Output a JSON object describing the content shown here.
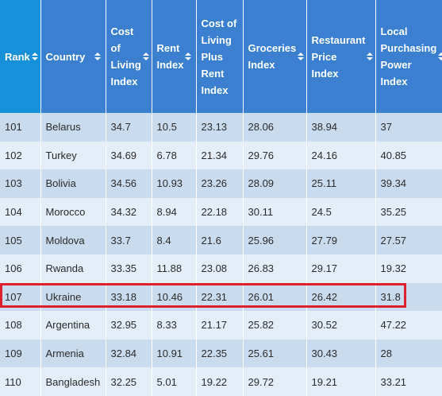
{
  "columns": [
    {
      "label": "Rank"
    },
    {
      "label": "Country"
    },
    {
      "label": "Cost of Living Index"
    },
    {
      "label": "Rent Index"
    },
    {
      "label": "Cost of Living Plus Rent Index"
    },
    {
      "label": "Groceries Index"
    },
    {
      "label": "Restaurant Price Index"
    },
    {
      "label": "Local Purchasing Power Index"
    }
  ],
  "rows": [
    [
      "101",
      "Belarus",
      "34.7",
      "10.5",
      "23.13",
      "28.06",
      "38.94",
      "37"
    ],
    [
      "102",
      "Turkey",
      "34.69",
      "6.78",
      "21.34",
      "29.76",
      "24.16",
      "40.85"
    ],
    [
      "103",
      "Bolivia",
      "34.56",
      "10.93",
      "23.26",
      "28.09",
      "25.11",
      "39.34"
    ],
    [
      "104",
      "Morocco",
      "34.32",
      "8.94",
      "22.18",
      "30.11",
      "24.5",
      "35.25"
    ],
    [
      "105",
      "Moldova",
      "33.7",
      "8.4",
      "21.6",
      "25.96",
      "27.79",
      "27.57"
    ],
    [
      "106",
      "Rwanda",
      "33.35",
      "11.88",
      "23.08",
      "26.83",
      "29.17",
      "19.32"
    ],
    [
      "107",
      "Ukraine",
      "33.18",
      "10.46",
      "22.31",
      "26.01",
      "26.42",
      "31.8"
    ],
    [
      "108",
      "Argentina",
      "32.95",
      "8.33",
      "21.17",
      "25.82",
      "30.52",
      "47.22"
    ],
    [
      "109",
      "Armenia",
      "32.84",
      "10.91",
      "22.35",
      "25.61",
      "30.43",
      "28"
    ],
    [
      "110",
      "Bangladesh",
      "32.25",
      "5.01",
      "19.22",
      "29.72",
      "19.21",
      "33.21"
    ]
  ],
  "highlighted_row": "107",
  "colors": {
    "header": "#3b7fd0",
    "rank_header": "#1690d8",
    "row_odd": "#c8dbef",
    "row_even": "#e4eef8",
    "highlight_border": "#e0202a"
  }
}
